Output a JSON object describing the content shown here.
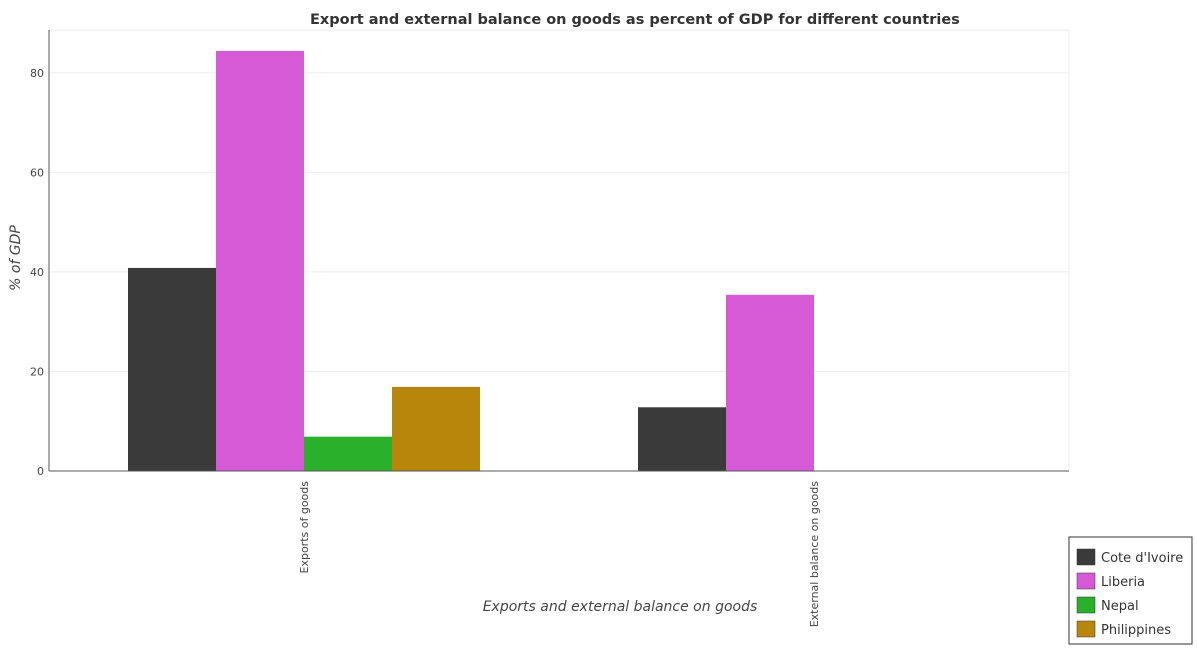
{
  "chart_data": {
    "type": "bar",
    "title": "Export and external balance on goods as percent of GDP for different countries",
    "xlabel": "Exports and external balance on goods",
    "ylabel": "% of GDP",
    "categories": [
      "Exports of goods",
      "External balance on goods"
    ],
    "series": [
      {
        "name": "Cote d'Ivoire",
        "color": "#3a3a3a",
        "values": [
          40.8,
          12.8
        ]
      },
      {
        "name": "Liberia",
        "color": "#d65ad6",
        "values": [
          84.4,
          35.4
        ]
      },
      {
        "name": "Nepal",
        "color": "#2bb02b",
        "values": [
          6.9,
          0
        ]
      },
      {
        "name": "Philippines",
        "color": "#b8860b",
        "values": [
          16.9,
          0
        ]
      }
    ],
    "ylim": [
      0,
      88.6
    ],
    "yticks": [
      0,
      20,
      40,
      60,
      80
    ],
    "grid": true,
    "legend_position": "bottom-right"
  }
}
